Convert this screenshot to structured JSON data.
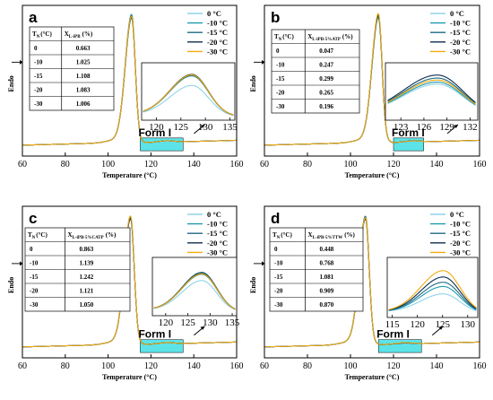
{
  "legend_labels": [
    "0 °C",
    "-10 °C",
    "-15 °C",
    "-20 °C",
    "-30 °C"
  ],
  "series_colors": [
    "#8fd3e8",
    "#1e9bb0",
    "#1d6a84",
    "#0d2c4e",
    "#f2a90c"
  ],
  "highlight_color": "#5ce3e8",
  "y_axis_label": "Endo",
  "x_axis_label": "Temperature (°C)",
  "inset_label": "Form I",
  "table_header_tn": "T",
  "table_header_tn_sub": "N",
  "table_header_tn_unit": "(°C)",
  "table_header_x": "X",
  "chart_data": [
    {
      "type": "line",
      "panel_label": "a",
      "xlabel": "Temperature (°C)",
      "ylabel": "Endo",
      "xlim": [
        60,
        160
      ],
      "x_ticks": [
        "60",
        "80",
        "100",
        "120",
        "140",
        "160"
      ],
      "peak_temperature": 111,
      "peak_heights": [
        0.93,
        0.9,
        0.92,
        0.9,
        0.91
      ],
      "highlight_range": [
        115,
        135
      ],
      "inset": {
        "xlim": [
          117,
          136
        ],
        "x_ticks": [
          "120",
          "125",
          "130",
          "135"
        ],
        "peak_x": 127.3,
        "amplitudes": [
          0.6,
          0.79,
          0.8,
          0.82,
          0.81
        ]
      },
      "table": {
        "x_sub": "L-iPB",
        "unit": "(%)",
        "rows": [
          [
            "0",
            "0.663"
          ],
          [
            "-10",
            "1.025"
          ],
          [
            "-15",
            "1.108"
          ],
          [
            "-20",
            "1.083"
          ],
          [
            "-30",
            "1.006"
          ]
        ]
      }
    },
    {
      "type": "line",
      "panel_label": "b",
      "xlabel": "Temperature (°C)",
      "ylabel": "Endo",
      "xlim": [
        60,
        160
      ],
      "x_ticks": [
        "60",
        "80",
        "100",
        "120",
        "140",
        "160"
      ],
      "peak_temperature": 113,
      "peak_heights": [
        0.92,
        0.9,
        0.91,
        0.92,
        0.93
      ],
      "highlight_range": [
        120,
        134
      ],
      "inset": {
        "xlim": [
          121,
          133
        ],
        "x_ticks": [
          "123",
          "126",
          "129",
          "132"
        ],
        "peak_x": 127.8,
        "amplitudes": [
          0.62,
          0.66,
          0.74,
          0.8,
          0.7
        ]
      },
      "table": {
        "x_sub": "L-iPB-5%ATP",
        "unit": "(%)",
        "rows": [
          [
            "0",
            "0.047"
          ],
          [
            "-10",
            "0.247"
          ],
          [
            "-15",
            "0.299"
          ],
          [
            "-20",
            "0.265"
          ],
          [
            "-30",
            "0.196"
          ]
        ]
      }
    },
    {
      "type": "line",
      "panel_label": "c",
      "xlabel": "Temperature (°C)",
      "ylabel": "Endo",
      "xlim": [
        60,
        160
      ],
      "x_ticks": [
        "60",
        "80",
        "100",
        "120",
        "140",
        "160"
      ],
      "peak_temperature": 110.5,
      "peak_heights": [
        0.9,
        0.92,
        0.91,
        0.9,
        0.92
      ],
      "highlight_range": [
        115,
        135
      ],
      "inset": {
        "xlim": [
          117,
          136
        ],
        "x_ticks": [
          "120",
          "125",
          "130",
          "135"
        ],
        "peak_x": 128.2,
        "amplitudes": [
          0.6,
          0.72,
          0.76,
          0.74,
          0.73
        ]
      },
      "table": {
        "x_sub": "L-iPB-5%CATP",
        "unit": "(%)",
        "rows": [
          [
            "0",
            "0.863"
          ],
          [
            "-10",
            "1.139"
          ],
          [
            "-15",
            "1.242"
          ],
          [
            "-20",
            "1.121"
          ],
          [
            "-30",
            "1.050"
          ]
        ]
      }
    },
    {
      "type": "line",
      "panel_label": "d",
      "xlabel": "Temperature (°C)",
      "ylabel": "Endo",
      "xlim": [
        60,
        160
      ],
      "x_ticks": [
        "60",
        "80",
        "100",
        "120",
        "140",
        "160"
      ],
      "peak_temperature": 107,
      "peak_heights": [
        0.92,
        0.91,
        0.92,
        0.9,
        0.91
      ],
      "highlight_range": [
        113,
        133
      ],
      "inset": {
        "xlim": [
          114,
          132
        ],
        "x_ticks": [
          "115",
          "120",
          "125",
          "130"
        ],
        "peak_x": 125.2,
        "amplitudes": [
          0.36,
          0.5,
          0.58,
          0.68,
          0.8
        ]
      },
      "table": {
        "x_sub": "L-iPB-5%TTW",
        "unit": "(%)",
        "rows": [
          [
            "0",
            "0.448"
          ],
          [
            "-10",
            "0.768"
          ],
          [
            "-15",
            "1.081"
          ],
          [
            "-20",
            "0.909"
          ],
          [
            "-30",
            "0.870"
          ]
        ]
      }
    }
  ]
}
